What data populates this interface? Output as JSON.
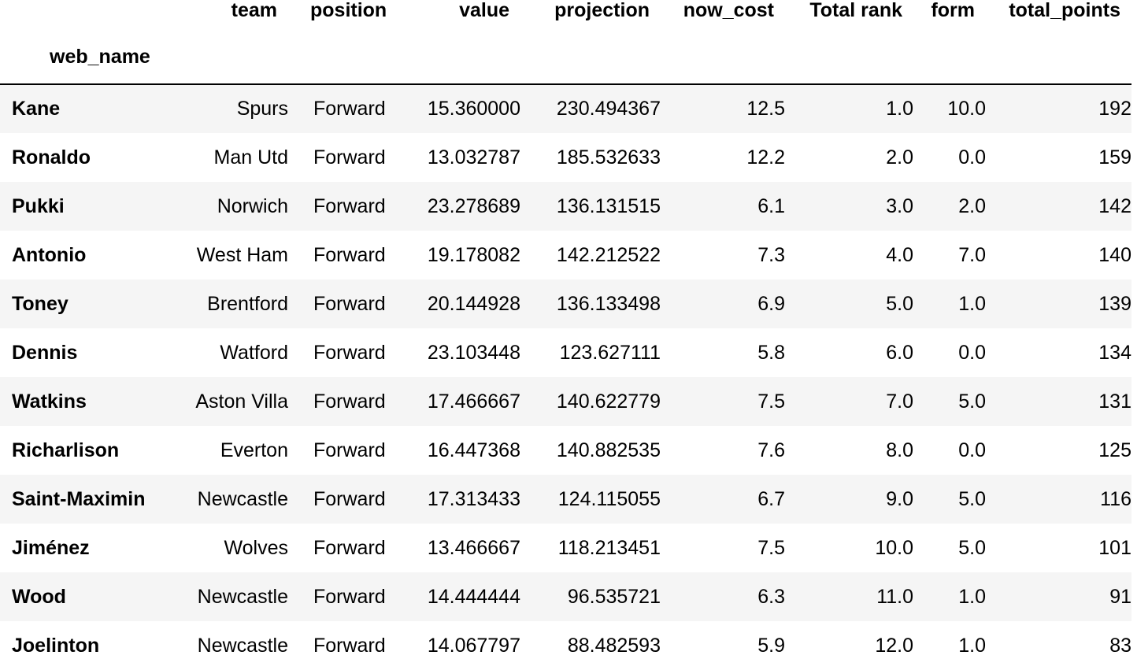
{
  "table": {
    "columns": [
      "team",
      "position",
      "value",
      "projection",
      "now_cost",
      "Total rank",
      "form",
      "total_points"
    ],
    "index_name": "web_name",
    "rows": [
      {
        "web_name": "Kane",
        "team": "Spurs",
        "position": "Forward",
        "value": "15.360000",
        "projection": "230.494367",
        "now_cost": "12.5",
        "total_rank": "1.0",
        "form": "10.0",
        "total_points": "192"
      },
      {
        "web_name": "Ronaldo",
        "team": "Man Utd",
        "position": "Forward",
        "value": "13.032787",
        "projection": "185.532633",
        "now_cost": "12.2",
        "total_rank": "2.0",
        "form": "0.0",
        "total_points": "159"
      },
      {
        "web_name": "Pukki",
        "team": "Norwich",
        "position": "Forward",
        "value": "23.278689",
        "projection": "136.131515",
        "now_cost": "6.1",
        "total_rank": "3.0",
        "form": "2.0",
        "total_points": "142"
      },
      {
        "web_name": "Antonio",
        "team": "West Ham",
        "position": "Forward",
        "value": "19.178082",
        "projection": "142.212522",
        "now_cost": "7.3",
        "total_rank": "4.0",
        "form": "7.0",
        "total_points": "140"
      },
      {
        "web_name": "Toney",
        "team": "Brentford",
        "position": "Forward",
        "value": "20.144928",
        "projection": "136.133498",
        "now_cost": "6.9",
        "total_rank": "5.0",
        "form": "1.0",
        "total_points": "139"
      },
      {
        "web_name": "Dennis",
        "team": "Watford",
        "position": "Forward",
        "value": "23.103448",
        "projection": "123.627111",
        "now_cost": "5.8",
        "total_rank": "6.0",
        "form": "0.0",
        "total_points": "134"
      },
      {
        "web_name": "Watkins",
        "team": "Aston Villa",
        "position": "Forward",
        "value": "17.466667",
        "projection": "140.622779",
        "now_cost": "7.5",
        "total_rank": "7.0",
        "form": "5.0",
        "total_points": "131"
      },
      {
        "web_name": "Richarlison",
        "team": "Everton",
        "position": "Forward",
        "value": "16.447368",
        "projection": "140.882535",
        "now_cost": "7.6",
        "total_rank": "8.0",
        "form": "0.0",
        "total_points": "125"
      },
      {
        "web_name": "Saint-Maximin",
        "team": "Newcastle",
        "position": "Forward",
        "value": "17.313433",
        "projection": "124.115055",
        "now_cost": "6.7",
        "total_rank": "9.0",
        "form": "5.0",
        "total_points": "116"
      },
      {
        "web_name": "Jiménez",
        "team": "Wolves",
        "position": "Forward",
        "value": "13.466667",
        "projection": "118.213451",
        "now_cost": "7.5",
        "total_rank": "10.0",
        "form": "5.0",
        "total_points": "101"
      },
      {
        "web_name": "Wood",
        "team": "Newcastle",
        "position": "Forward",
        "value": "14.444444",
        "projection": "96.535721",
        "now_cost": "6.3",
        "total_rank": "11.0",
        "form": "1.0",
        "total_points": "91"
      },
      {
        "web_name": "Joelinton",
        "team": "Newcastle",
        "position": "Forward",
        "value": "14.067797",
        "projection": "88.482593",
        "now_cost": "5.9",
        "total_rank": "12.0",
        "form": "1.0",
        "total_points": "83"
      }
    ]
  }
}
